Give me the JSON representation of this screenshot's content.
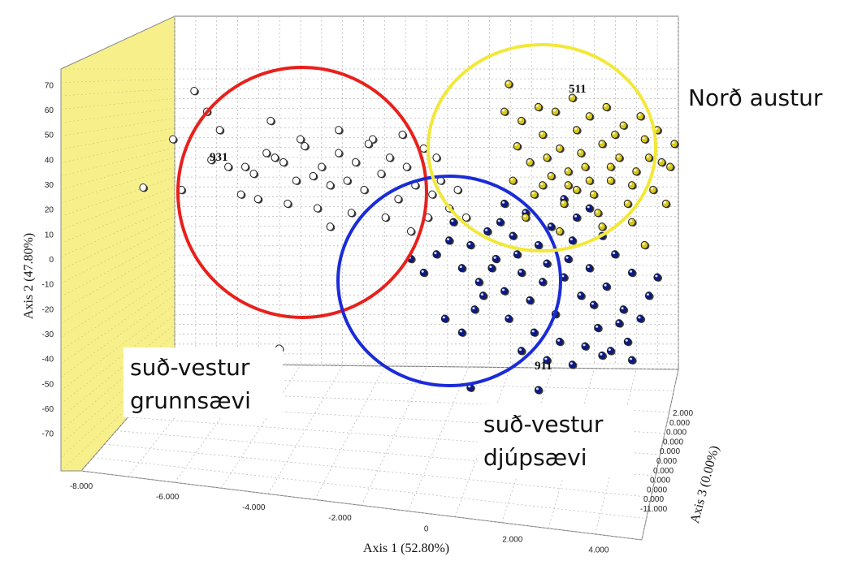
{
  "chart_data": {
    "type": "scatter",
    "projection": "3d",
    "xlabel": "Axis 1 (52.80%)",
    "ylabel": "Axis 2 (47.80%)",
    "zlabel": "Axis 3 (0.00%)",
    "x_ticks": [
      "-8.000",
      "-6.000",
      "-4.000",
      "-2.000",
      "0",
      "2.000",
      "4.000"
    ],
    "y_ticks": [
      "70",
      "60",
      "50",
      "40",
      "30",
      "20",
      "10",
      "0",
      "-10",
      "-20",
      "-30",
      "-40",
      "-50",
      "-60",
      "-70"
    ],
    "z_ticks": [
      "2.000",
      "0.000",
      "-11.000"
    ],
    "xlim": [
      -8,
      5
    ],
    "ylim": [
      -75,
      75
    ],
    "grid": true,
    "colors": {
      "left_wall": "#f7f08a",
      "circle_red": "#e8201c",
      "circle_blue": "#1a2bd8",
      "circle_yellow": "#f2e838"
    },
    "clusters": [
      {
        "label": "931",
        "region": "suð-vestur grunnsævi",
        "color": "#ffffff",
        "circle_color": "#e8201c",
        "points": [
          [
            -5.9,
            39
          ],
          [
            -5.5,
            36
          ],
          [
            -5.1,
            36
          ],
          [
            -4.9,
            33
          ],
          [
            -4.6,
            42
          ],
          [
            -4.4,
            40
          ],
          [
            -4.2,
            38
          ],
          [
            -3.9,
            30
          ],
          [
            -3.7,
            45
          ],
          [
            -3.5,
            32
          ],
          [
            -3.3,
            36
          ],
          [
            -3.1,
            28
          ],
          [
            -2.9,
            42
          ],
          [
            -2.7,
            30
          ],
          [
            -2.5,
            38
          ],
          [
            -2.3,
            26
          ],
          [
            -2.1,
            48
          ],
          [
            -1.9,
            33
          ],
          [
            -1.7,
            40
          ],
          [
            -1.5,
            22
          ],
          [
            -1.3,
            36
          ],
          [
            -1.1,
            28
          ],
          [
            -0.9,
            44
          ],
          [
            -0.7,
            24
          ],
          [
            -0.5,
            30
          ],
          [
            -0.3,
            18
          ],
          [
            -0.1,
            26
          ],
          [
            0.1,
            14
          ],
          [
            -5.2,
            24
          ],
          [
            -4.8,
            22
          ],
          [
            -4.1,
            20
          ],
          [
            -3.4,
            18
          ],
          [
            -2.6,
            16
          ],
          [
            -1.8,
            14
          ],
          [
            -6.0,
            60
          ],
          [
            -5.7,
            52
          ],
          [
            -4.5,
            56
          ],
          [
            -3.8,
            48
          ],
          [
            -2.9,
            52
          ],
          [
            -2.2,
            46
          ],
          [
            -1.4,
            50
          ],
          [
            -0.6,
            40
          ],
          [
            -6.6,
            26
          ],
          [
            -3.1,
            10
          ],
          [
            -1.2,
            8
          ],
          [
            -7.5,
            27
          ],
          [
            -6.8,
            48
          ],
          [
            -6.3,
            69
          ],
          [
            -4.3,
            -43
          ],
          [
            -0.8,
            14
          ]
        ]
      },
      {
        "label": "911",
        "region": "suð-vestur djúpsævi",
        "color": "#0a1a8c",
        "circle_color": "#1a2bd8",
        "points": [
          [
            -0.6,
            -2
          ],
          [
            -0.3,
            4
          ],
          [
            0,
            -8
          ],
          [
            0.2,
            2
          ],
          [
            0.4,
            -14
          ],
          [
            0.6,
            8
          ],
          [
            0.8,
            -4
          ],
          [
            1,
            -18
          ],
          [
            1.2,
            6
          ],
          [
            1.4,
            -10
          ],
          [
            1.6,
            -22
          ],
          [
            1.8,
            2
          ],
          [
            2,
            -6
          ],
          [
            2.2,
            -28
          ],
          [
            2.4,
            -12
          ],
          [
            2.6,
            4
          ],
          [
            2.8,
            -20
          ],
          [
            3,
            -8
          ],
          [
            3.2,
            -34
          ],
          [
            3.4,
            -16
          ],
          [
            3.6,
            -2
          ],
          [
            3.8,
            -26
          ],
          [
            4,
            -10
          ],
          [
            0.5,
            -20
          ],
          [
            1.1,
            -30
          ],
          [
            1.7,
            -36
          ],
          [
            2.3,
            -40
          ],
          [
            2.9,
            -42
          ],
          [
            3.5,
            -44
          ],
          [
            4.2,
            -30
          ],
          [
            0.3,
            -26
          ],
          [
            0.9,
            12
          ],
          [
            1.5,
            16
          ],
          [
            2.1,
            10
          ],
          [
            2.7,
            14
          ],
          [
            3.3,
            6
          ],
          [
            3.9,
            -40
          ],
          [
            4.4,
            -20
          ],
          [
            -0.9,
            -10
          ],
          [
            -1.2,
            -4
          ],
          [
            1.3,
            -2
          ],
          [
            1.9,
            -14
          ],
          [
            2.5,
            -4
          ],
          [
            3.1,
            -24
          ],
          [
            3.7,
            -32
          ],
          [
            0.7,
            -8
          ],
          [
            -0.4,
            -30
          ],
          [
            2.0,
            -48
          ],
          [
            0.2,
            -60
          ],
          [
            1.8,
            -61
          ],
          [
            1.0,
            20
          ],
          [
            2.4,
            22
          ],
          [
            3.0,
            18
          ],
          [
            4.6,
            -12
          ],
          [
            -0.2,
            12
          ],
          [
            1.4,
            -44
          ],
          [
            2.6,
            -50
          ],
          [
            3.3,
            -46
          ],
          [
            0.0,
            -36
          ],
          [
            4.0,
            -48
          ]
        ]
      },
      {
        "label": "511",
        "region": "Norð austur",
        "color": "#d8c81a",
        "circle_color": "#f2e838",
        "points": [
          [
            1.3,
            45
          ],
          [
            1.6,
            38
          ],
          [
            1.9,
            50
          ],
          [
            2.1,
            32
          ],
          [
            2.3,
            44
          ],
          [
            2.5,
            28
          ],
          [
            2.7,
            52
          ],
          [
            2.9,
            36
          ],
          [
            3.1,
            24
          ],
          [
            3.3,
            46
          ],
          [
            3.5,
            30
          ],
          [
            3.7,
            40
          ],
          [
            3.9,
            20
          ],
          [
            4.1,
            34
          ],
          [
            4.3,
            48
          ],
          [
            4.5,
            26
          ],
          [
            4.7,
            38
          ],
          [
            1.4,
            56
          ],
          [
            1.8,
            62
          ],
          [
            2.2,
            60
          ],
          [
            2.6,
            66
          ],
          [
            3.0,
            58
          ],
          [
            3.4,
            62
          ],
          [
            3.8,
            54
          ],
          [
            4.2,
            58
          ],
          [
            4.6,
            52
          ],
          [
            1.2,
            30
          ],
          [
            1.7,
            24
          ],
          [
            2.4,
            20
          ],
          [
            3.2,
            16
          ],
          [
            4.0,
            12
          ],
          [
            4.8,
            20
          ],
          [
            2.0,
            40
          ],
          [
            2.8,
            42
          ],
          [
            3.6,
            50
          ],
          [
            4.4,
            40
          ],
          [
            1.5,
            14
          ],
          [
            2.3,
            8
          ],
          [
            3.3,
            10
          ],
          [
            4.9,
            36
          ],
          [
            2.5,
            34
          ],
          [
            3.0,
            30
          ],
          [
            3.5,
            36
          ],
          [
            4.0,
            28
          ],
          [
            1.9,
            28
          ],
          [
            2.7,
            26
          ],
          [
            5.0,
            46
          ],
          [
            4.3,
            2
          ],
          [
            1.1,
            72
          ],
          [
            1.0,
            60
          ]
        ]
      }
    ]
  },
  "annotations": {
    "cluster_931": "931",
    "cluster_911": "911",
    "cluster_511": "511",
    "region_nordaustur": "Norð austur",
    "region_grunn_line1": "suð-vestur",
    "region_grunn_line2": "grunnsævi",
    "region_djup_line1": "suð-vestur",
    "region_djup_line2": "djúpsævi"
  }
}
